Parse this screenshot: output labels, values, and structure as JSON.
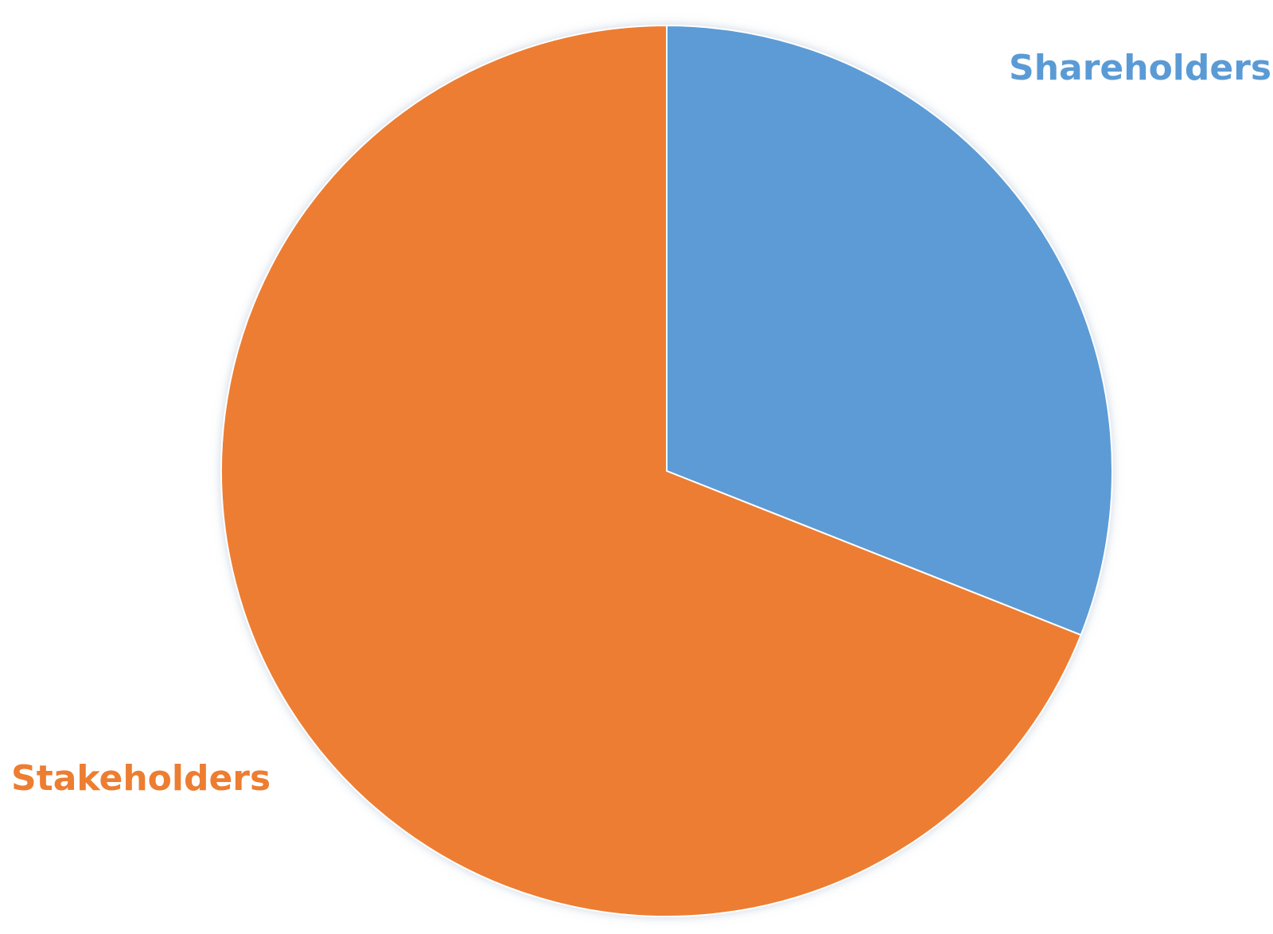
{
  "chart_data": {
    "type": "pie",
    "title": "",
    "start_angle_deg": 0,
    "direction": "clockwise",
    "slices": [
      {
        "label": "Shareholders",
        "value": 31,
        "color": "#5b9bd5"
      },
      {
        "label": "Stakeholders",
        "value": 69,
        "color": "#ed7d31"
      }
    ]
  }
}
